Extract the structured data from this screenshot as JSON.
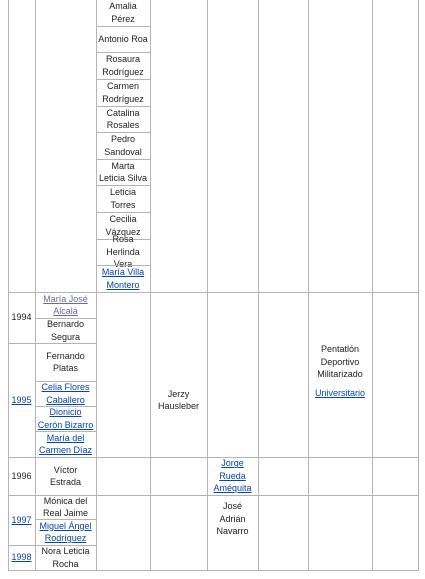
{
  "top_section": {
    "names": [
      "Amalia Pérez",
      "Antonio Roa",
      "Rosaura Rodríguez",
      "Carmen Rodríguez",
      "Catalina Rosales",
      "Pedro Sandoval",
      "Marta Leticia Silva",
      "Leticia Torres",
      "Cecilia Vázquez",
      "Rosa Herlinda Vera",
      "María Villa Montero"
    ]
  },
  "years": [
    "1994",
    "1995",
    "1996",
    "1997",
    "1998"
  ],
  "athletes": [
    "María José Alcalá",
    "Bernardo Segura",
    "Fernando Platas",
    "Celia Flores Caballero",
    "Dionicio Cerón Bizarro",
    "María del Carmen Díaz",
    "Víctor Estrada",
    "Mónica del Real Jaime",
    "Miguel Ángel Rodríguez",
    "Nora Leticia Rocha"
  ],
  "coaches": [
    "Jerzy Hausleber",
    "Jorge Rueda Améquita",
    "José Adrián Navarro"
  ],
  "club": [
    "Pentatlón Deportivo Militarizado",
    "Universitario"
  ]
}
